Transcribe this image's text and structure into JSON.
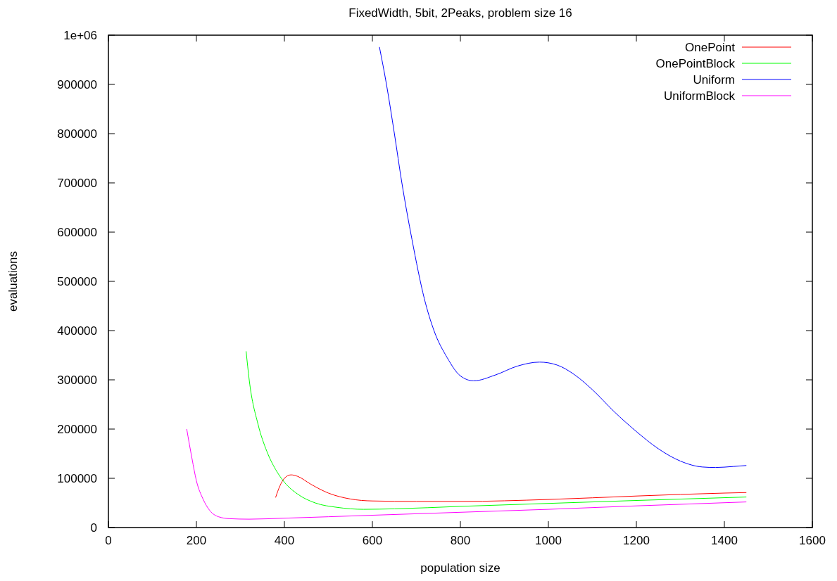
{
  "chart_data": {
    "type": "line",
    "title": "FixedWidth, 5bit, 2Peaks, problem size 16",
    "xlabel": "population size",
    "ylabel": "evaluations",
    "xlim": [
      0,
      1600
    ],
    "xticks": [
      0,
      200,
      400,
      600,
      800,
      1000,
      1200,
      1400,
      1600
    ],
    "ylim": [
      0,
      1000000
    ],
    "yticks": [
      0,
      100000,
      200000,
      300000,
      400000,
      500000,
      600000,
      700000,
      800000,
      900000,
      {
        "value": 1000000,
        "label": "1e+06"
      }
    ],
    "legend": "top right",
    "grid": false,
    "marker": "none",
    "line_style": "solid",
    "series": [
      {
        "name": "OnePoint",
        "color": "#ff0000",
        "x": [
          380,
          390,
          400,
          415,
          430,
          460,
          500,
          550,
          600,
          700,
          800,
          1000,
          1200,
          1400,
          1450
        ],
        "values": [
          61000,
          85000,
          100000,
          107000,
          104000,
          88000,
          70000,
          58000,
          54000,
          53000,
          53000,
          57000,
          64000,
          70000,
          71000
        ]
      },
      {
        "name": "OnePointBlock",
        "color": "#00ff00",
        "x": [
          313,
          320,
          340,
          360,
          380,
          400,
          430,
          470,
          520,
          580,
          650,
          800,
          1000,
          1200,
          1450
        ],
        "values": [
          358000,
          300000,
          210000,
          155000,
          118000,
          92000,
          68000,
          50000,
          41000,
          37000,
          38000,
          43000,
          49000,
          55000,
          62000
        ]
      },
      {
        "name": "Uniform",
        "color": "#0000ff",
        "x": [
          616,
          632,
          650,
          667,
          690,
          718,
          740,
          770,
          800,
          830,
          880,
          930,
          980,
          1020,
          1060,
          1100,
          1150,
          1200,
          1250,
          1300,
          1350,
          1380,
          1420,
          1450
        ],
        "values": [
          976000,
          900000,
          800000,
          700000,
          585000,
          465000,
          400000,
          345000,
          308000,
          298000,
          310000,
          328000,
          336000,
          330000,
          310000,
          280000,
          235000,
          195000,
          160000,
          135000,
          123000,
          122000,
          124000,
          126000
        ]
      },
      {
        "name": "UniformBlock",
        "color": "#ff00ff",
        "x": [
          178,
          190,
          200,
          215,
          230,
          250,
          275,
          320,
          400,
          600,
          800,
          1000,
          1200,
          1450
        ],
        "values": [
          200000,
          140000,
          95000,
          58000,
          35000,
          22000,
          18000,
          17000,
          19000,
          25000,
          31000,
          37000,
          44000,
          52000
        ]
      }
    ]
  }
}
